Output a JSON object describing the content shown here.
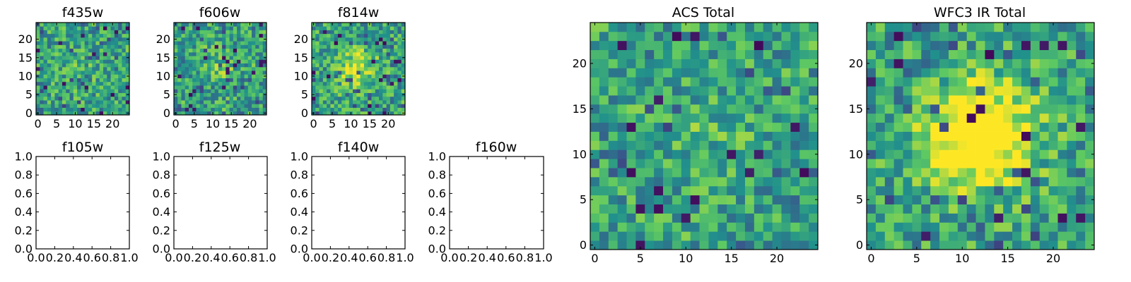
{
  "chart_data": [
    {
      "id": "f435w",
      "type": "heatmap",
      "title": "f435w",
      "grid_size": 25,
      "seed": 11,
      "blob_strength": 0.05,
      "xticks": [
        0,
        5,
        10,
        15,
        20
      ],
      "yticks": [
        0,
        5,
        10,
        15,
        20
      ],
      "xlim": [
        -0.5,
        24.5
      ],
      "ylim": [
        -0.5,
        24.5
      ]
    },
    {
      "id": "f606w",
      "type": "heatmap",
      "title": "f606w",
      "grid_size": 25,
      "seed": 23,
      "blob_strength": 0.12,
      "xticks": [
        0,
        5,
        10,
        15,
        20
      ],
      "yticks": [
        0,
        5,
        10,
        15,
        20
      ],
      "xlim": [
        -0.5,
        24.5
      ],
      "ylim": [
        -0.5,
        24.5
      ]
    },
    {
      "id": "f814w",
      "type": "heatmap",
      "title": "f814w",
      "grid_size": 25,
      "seed": 37,
      "blob_strength": 0.3,
      "xticks": [
        0,
        5,
        10,
        15,
        20
      ],
      "yticks": [
        0,
        5,
        10,
        15,
        20
      ],
      "xlim": [
        -0.5,
        24.5
      ],
      "ylim": [
        -0.5,
        24.5
      ]
    },
    {
      "id": "f105w",
      "type": "empty",
      "title": "f105w",
      "xticks": [
        "0.0",
        "0.2",
        "0.4",
        "0.6",
        "0.8",
        "1.0"
      ],
      "yticks": [
        "0.0",
        "0.2",
        "0.4",
        "0.6",
        "0.8",
        "1.0"
      ],
      "xlim": [
        0,
        1
      ],
      "ylim": [
        0,
        1
      ]
    },
    {
      "id": "f125w",
      "type": "empty",
      "title": "f125w",
      "xticks": [
        "0.0",
        "0.2",
        "0.4",
        "0.6",
        "0.8",
        "1.0"
      ],
      "yticks": [
        "0.0",
        "0.2",
        "0.4",
        "0.6",
        "0.8",
        "1.0"
      ],
      "xlim": [
        0,
        1
      ],
      "ylim": [
        0,
        1
      ]
    },
    {
      "id": "f140w",
      "type": "empty",
      "title": "f140w",
      "xticks": [
        "0.0",
        "0.2",
        "0.4",
        "0.6",
        "0.8",
        "1.0"
      ],
      "yticks": [
        "0.0",
        "0.2",
        "0.4",
        "0.6",
        "0.8",
        "1.0"
      ],
      "xlim": [
        0,
        1
      ],
      "ylim": [
        0,
        1
      ]
    },
    {
      "id": "f160w",
      "type": "empty",
      "title": "f160w",
      "xticks": [
        "0.0",
        "0.2",
        "0.4",
        "0.6",
        "0.8",
        "1.0"
      ],
      "yticks": [
        "0.0",
        "0.2",
        "0.4",
        "0.6",
        "0.8",
        "1.0"
      ],
      "xlim": [
        0,
        1
      ],
      "ylim": [
        0,
        1
      ]
    },
    {
      "id": "acs-total",
      "type": "heatmap",
      "title": "ACS Total",
      "grid_size": 25,
      "seed": 53,
      "blob_strength": 0.08,
      "xticks": [
        0,
        5,
        10,
        15,
        20
      ],
      "yticks": [
        0,
        5,
        10,
        15,
        20
      ],
      "xlim": [
        -0.5,
        24.5
      ],
      "ylim": [
        -0.5,
        24.5
      ]
    },
    {
      "id": "wfc3-ir-total",
      "type": "heatmap",
      "title": "WFC3 IR Total",
      "grid_size": 25,
      "seed": 71,
      "blob_strength": 0.75,
      "xticks": [
        0,
        5,
        10,
        15,
        20
      ],
      "yticks": [
        0,
        5,
        10,
        15,
        20
      ],
      "xlim": [
        -0.5,
        24.5
      ],
      "ylim": [
        -0.5,
        24.5
      ]
    }
  ],
  "colormap": [
    "#440154",
    "#3b528b",
    "#21918c",
    "#5ec962",
    "#fde725"
  ]
}
